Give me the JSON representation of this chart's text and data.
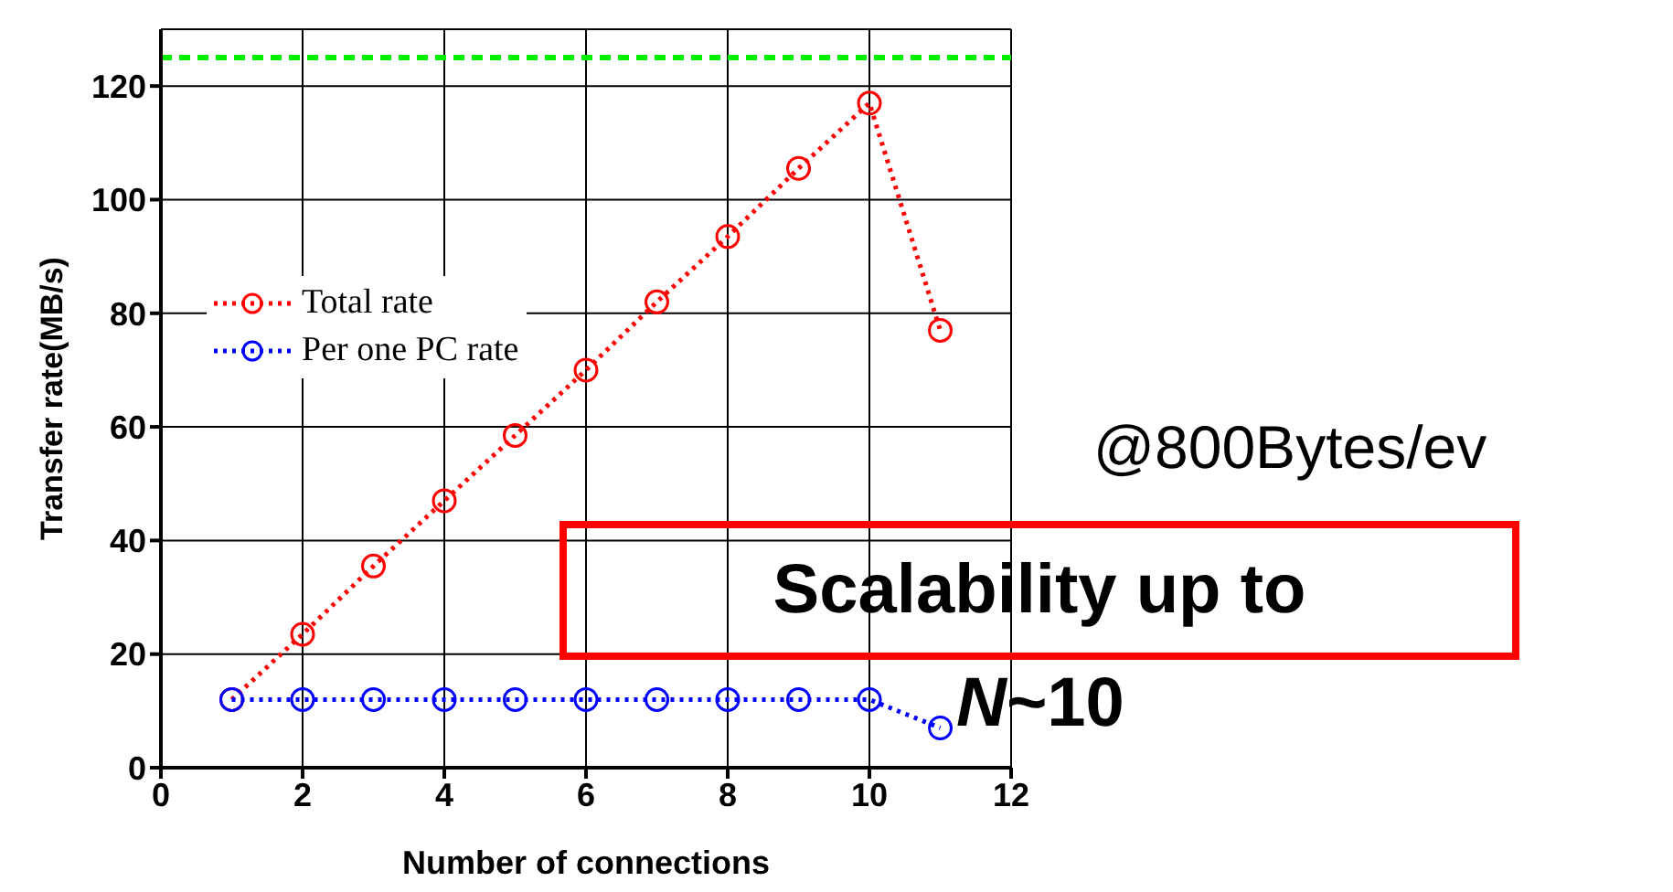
{
  "chart_data": {
    "type": "line",
    "xlabel": "Number of connections",
    "ylabel": "Transfer rate(MB/s)",
    "x": [
      1,
      2,
      3,
      4,
      5,
      6,
      7,
      8,
      9,
      10,
      11
    ],
    "series": [
      {
        "name": "Total rate",
        "color": "#ff0000",
        "values": [
          12,
          23.5,
          35.5,
          47,
          58.5,
          70,
          82,
          93.5,
          105.5,
          117,
          77
        ]
      },
      {
        "name": "Per one PC rate",
        "color": "#0000ff",
        "values": [
          12,
          12,
          12,
          12,
          12,
          12,
          12,
          12,
          12,
          12,
          7
        ]
      }
    ],
    "xlim": [
      0,
      12
    ],
    "xticks": [
      0,
      2,
      4,
      6,
      8,
      10,
      12
    ],
    "ylim": [
      0,
      130
    ],
    "yticks": [
      0,
      20,
      40,
      60,
      80,
      100,
      120
    ],
    "grid": true,
    "legend": "left",
    "marker": "circle",
    "line_style": "dotted",
    "ref_lines": [
      {
        "axis": "y",
        "value": 125,
        "color": "#00ee00",
        "line_style": "dashed"
      }
    ],
    "annotations": [
      "@800Bytes/ev",
      "Scalability up to",
      "N~10"
    ]
  }
}
